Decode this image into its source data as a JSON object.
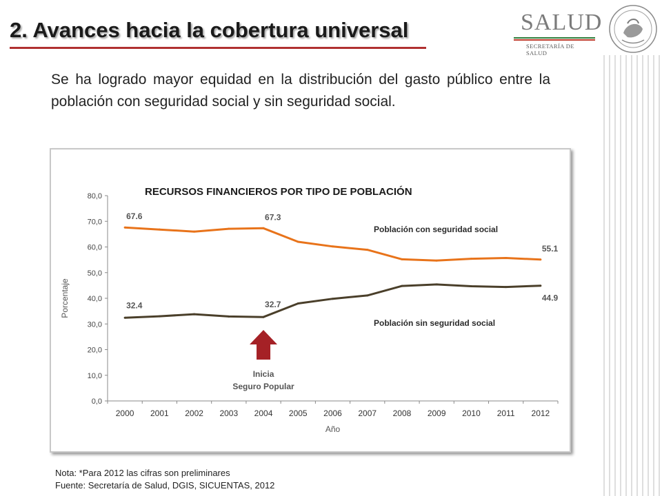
{
  "slide": {
    "title": "2. Avances hacia la cobertura universal",
    "intro": "Se ha logrado mayor equidad en la distribución del gasto público entre la población con seguridad social y sin seguridad social."
  },
  "logo": {
    "brand": "SALUD",
    "subtitle": "SECRETARÍA DE SALUD",
    "colors": {
      "green": "#2e7d3a",
      "red": "#c0392b",
      "gray": "#7b7b7b"
    }
  },
  "notes": {
    "nota": "Nota:  *Para 2012 las cifras son preliminares",
    "fuente": "Fuente: Secretaría de Salud, DGIS, SICUENTAS, 2012"
  },
  "colors": {
    "con": "#e8731a",
    "sin": "#4a3f2a",
    "arrow": "#a52126",
    "title_underline": "#b03030"
  },
  "chart_data": {
    "type": "line",
    "title": "RECURSOS FINANCIEROS POR TIPO DE POBLACIÓN",
    "xlabel": "Año",
    "ylabel": "Porcentaje",
    "ylim": [
      0,
      80
    ],
    "yticks": [
      "0,0",
      "10,0",
      "20,0",
      "30,0",
      "40,0",
      "50,0",
      "60,0",
      "70,0",
      "80,0"
    ],
    "categories": [
      "2000",
      "2001",
      "2002",
      "2003",
      "2004",
      "2005",
      "2006",
      "2007",
      "2008",
      "2009",
      "2010",
      "2011",
      "2012"
    ],
    "series": [
      {
        "name": "Población con seguridad social",
        "values": [
          67.6,
          66.8,
          66.0,
          67.1,
          67.3,
          62.0,
          60.2,
          58.9,
          55.2,
          54.7,
          55.4,
          55.7,
          55.1
        ],
        "labels": [
          {
            "index": 0,
            "text": "67.6"
          },
          {
            "index": 4,
            "text": "67.3"
          },
          {
            "index": 12,
            "text": "55.1"
          }
        ]
      },
      {
        "name": "Población sin seguridad social",
        "values": [
          32.4,
          33.0,
          33.8,
          32.9,
          32.7,
          38.0,
          39.8,
          41.1,
          44.8,
          45.4,
          44.7,
          44.4,
          44.9
        ],
        "labels": [
          {
            "index": 0,
            "text": "32.4"
          },
          {
            "index": 4,
            "text": "32.7"
          },
          {
            "index": 12,
            "text": "44.9"
          }
        ]
      }
    ],
    "annotation": {
      "index": 4,
      "line1": "Inicia",
      "line2": "Seguro Popular"
    }
  }
}
